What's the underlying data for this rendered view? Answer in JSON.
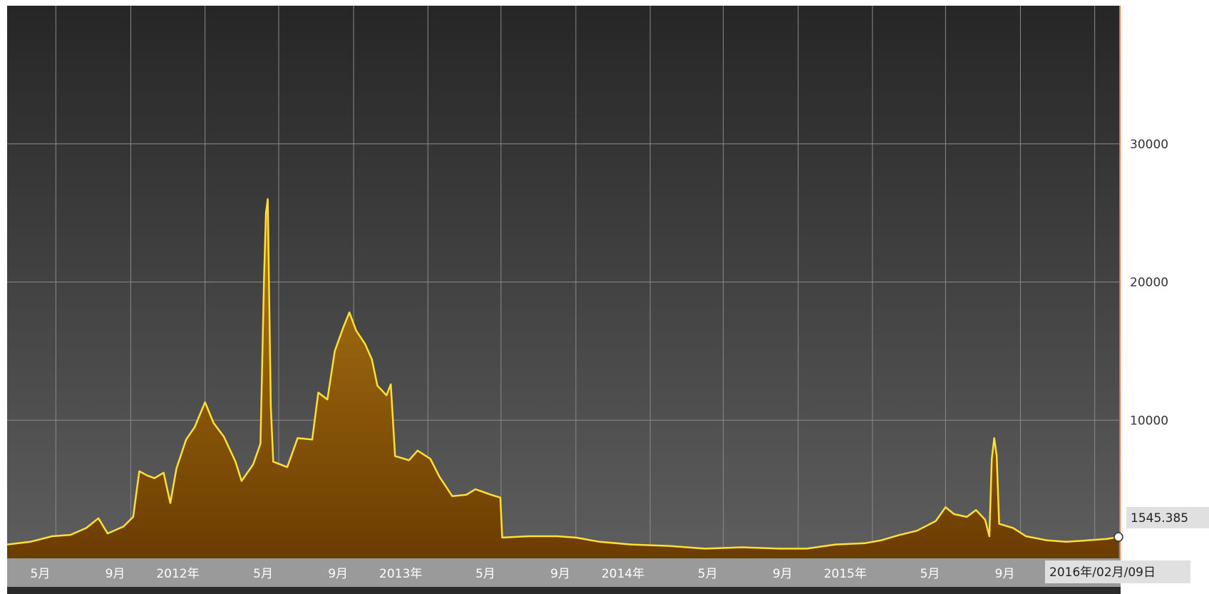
{
  "chart_data": {
    "type": "area",
    "title": "",
    "xlabel": "",
    "ylabel": "",
    "ylim": [
      0,
      40000
    ],
    "grid": true,
    "legend": "none",
    "y_ticks": [
      {
        "value": 10000,
        "label": "10000"
      },
      {
        "value": 20000,
        "label": "20000"
      },
      {
        "value": 30000,
        "label": "30000"
      }
    ],
    "x_ticks": [
      {
        "date": "2011-05-01",
        "label": "5月"
      },
      {
        "date": "2011-09-01",
        "label": "9月"
      },
      {
        "date": "2012-01-01",
        "label": "2012年"
      },
      {
        "date": "2012-05-01",
        "label": "5月"
      },
      {
        "date": "2012-09-01",
        "label": "9月"
      },
      {
        "date": "2013-01-01",
        "label": "2013年"
      },
      {
        "date": "2013-05-01",
        "label": "5月"
      },
      {
        "date": "2013-09-01",
        "label": "9月"
      },
      {
        "date": "2014-01-01",
        "label": "2014年"
      },
      {
        "date": "2014-05-01",
        "label": "5月"
      },
      {
        "date": "2014-09-01",
        "label": "9月"
      },
      {
        "date": "2015-01-01",
        "label": "2015年"
      },
      {
        "date": "2015-05-01",
        "label": "5月"
      },
      {
        "date": "2015-09-01",
        "label": "9月"
      }
    ],
    "x_range": [
      "2011-02-10",
      "2016-02-09"
    ],
    "series": [
      {
        "name": "",
        "points": [
          [
            "2011-02-10",
            1000
          ],
          [
            "2011-03-20",
            1200
          ],
          [
            "2011-04-25",
            1600
          ],
          [
            "2011-05-25",
            1700
          ],
          [
            "2011-06-20",
            2200
          ],
          [
            "2011-07-10",
            2900
          ],
          [
            "2011-07-25",
            1800
          ],
          [
            "2011-08-20",
            2300
          ],
          [
            "2011-09-05",
            3000
          ],
          [
            "2011-09-15",
            6300
          ],
          [
            "2011-09-28",
            6000
          ],
          [
            "2011-10-10",
            5800
          ],
          [
            "2011-10-25",
            6200
          ],
          [
            "2011-11-05",
            4000
          ],
          [
            "2011-11-15",
            6500
          ],
          [
            "2011-12-01",
            8600
          ],
          [
            "2011-12-15",
            9500
          ],
          [
            "2012-01-01",
            11300
          ],
          [
            "2012-01-15",
            9800
          ],
          [
            "2012-02-01",
            8800
          ],
          [
            "2012-02-20",
            7000
          ],
          [
            "2012-03-01",
            5600
          ],
          [
            "2012-03-20",
            6800
          ],
          [
            "2012-04-01",
            8300
          ],
          [
            "2012-04-07",
            20500
          ],
          [
            "2012-04-10",
            25000
          ],
          [
            "2012-04-13",
            26000
          ],
          [
            "2012-04-18",
            11000
          ],
          [
            "2012-04-22",
            7000
          ],
          [
            "2012-05-15",
            6600
          ],
          [
            "2012-06-01",
            8700
          ],
          [
            "2012-06-25",
            8600
          ],
          [
            "2012-07-05",
            12000
          ],
          [
            "2012-07-20",
            11500
          ],
          [
            "2012-08-01",
            15000
          ],
          [
            "2012-08-15",
            16700
          ],
          [
            "2012-08-25",
            17800
          ],
          [
            "2012-09-05",
            16500
          ],
          [
            "2012-09-20",
            15500
          ],
          [
            "2012-10-01",
            14400
          ],
          [
            "2012-10-10",
            12500
          ],
          [
            "2012-10-25",
            11800
          ],
          [
            "2012-11-01",
            12600
          ],
          [
            "2012-11-08",
            7400
          ],
          [
            "2012-12-01",
            7100
          ],
          [
            "2012-12-15",
            7800
          ],
          [
            "2013-01-05",
            7200
          ],
          [
            "2013-01-20",
            5900
          ],
          [
            "2013-02-10",
            4500
          ],
          [
            "2013-03-05",
            4600
          ],
          [
            "2013-03-20",
            5000
          ],
          [
            "2013-04-15",
            4600
          ],
          [
            "2013-04-30",
            4400
          ],
          [
            "2013-05-03",
            1500
          ],
          [
            "2013-06-15",
            1600
          ],
          [
            "2013-08-01",
            1600
          ],
          [
            "2013-09-01",
            1500
          ],
          [
            "2013-10-10",
            1200
          ],
          [
            "2013-12-01",
            1000
          ],
          [
            "2014-02-01",
            900
          ],
          [
            "2014-04-01",
            700
          ],
          [
            "2014-06-01",
            800
          ],
          [
            "2014-08-01",
            700
          ],
          [
            "2014-09-15",
            700
          ],
          [
            "2014-11-01",
            1000
          ],
          [
            "2014-12-20",
            1100
          ],
          [
            "2015-01-15",
            1300
          ],
          [
            "2015-02-15",
            1700
          ],
          [
            "2015-03-15",
            2000
          ],
          [
            "2015-04-15",
            2700
          ],
          [
            "2015-05-01",
            3700
          ],
          [
            "2015-05-15",
            3200
          ],
          [
            "2015-06-05",
            3000
          ],
          [
            "2015-06-20",
            3500
          ],
          [
            "2015-07-05",
            2800
          ],
          [
            "2015-07-12",
            1600
          ],
          [
            "2015-07-16",
            7200
          ],
          [
            "2015-07-20",
            8700
          ],
          [
            "2015-07-24",
            7400
          ],
          [
            "2015-07-28",
            2500
          ],
          [
            "2015-08-20",
            2200
          ],
          [
            "2015-09-10",
            1600
          ],
          [
            "2015-10-15",
            1300
          ],
          [
            "2015-11-15",
            1200
          ],
          [
            "2015-12-20",
            1300
          ],
          [
            "2016-01-20",
            1400
          ],
          [
            "2016-02-09",
            1545.385
          ]
        ]
      }
    ],
    "last_value_label": "1545.385",
    "last_date_label": "2016年/02月/09日",
    "colors": {
      "background_top": "#262626",
      "background_bottom": "#5e5e5e",
      "line": "#ffe033",
      "fill_top": "#b07a16",
      "fill_bottom": "#6b3c00",
      "grid": "#8a8a8a",
      "right_edge": "#e07a3a",
      "axis_strip": "#9a9a9a",
      "badge": "#e0e0e0"
    }
  }
}
